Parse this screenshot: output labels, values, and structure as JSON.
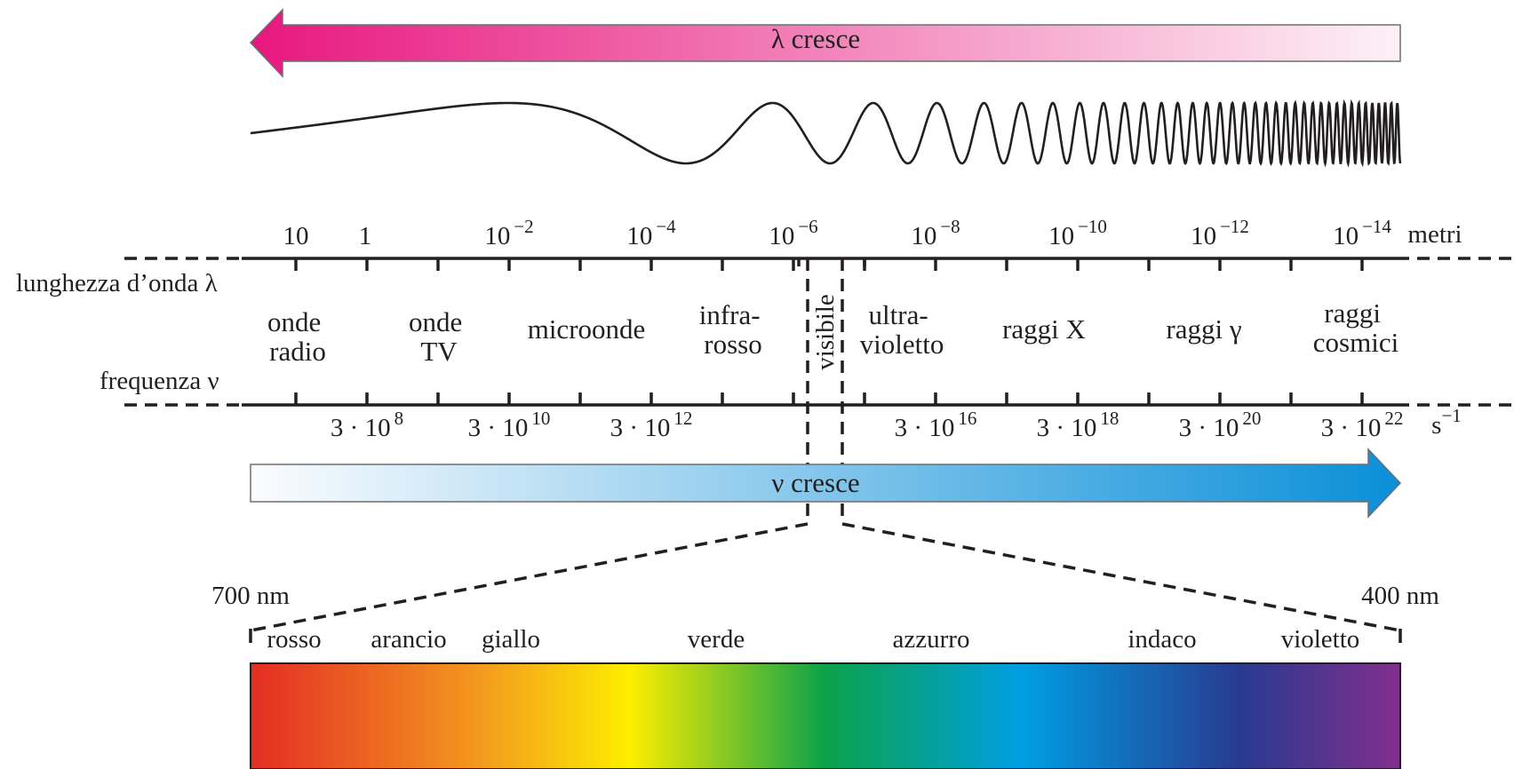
{
  "wavelength_arrow": {
    "label": "λ cresce",
    "color_start": "#e8177f",
    "color_end": "#fdf1f6"
  },
  "frequency_arrow": {
    "label": "ν cresce",
    "color_start": "#fbfcfe",
    "color_end": "#0a8fd8"
  },
  "wavelength_axis": {
    "name": "lunghezza d’onda λ",
    "unit": "metri",
    "ticks": [
      {
        "base": "10",
        "exp": ""
      },
      {
        "base": "1",
        "exp": ""
      },
      {
        "base": "10",
        "exp": "−2"
      },
      {
        "base": "10",
        "exp": "−4"
      },
      {
        "base": "10",
        "exp": "−6"
      },
      {
        "base": "10",
        "exp": "−8"
      },
      {
        "base": "10",
        "exp": "−10"
      },
      {
        "base": "10",
        "exp": "−12"
      },
      {
        "base": "10",
        "exp": "−14"
      }
    ]
  },
  "frequency_axis": {
    "name": "frequenza ν",
    "unit": "s",
    "unit_exp": "−1",
    "ticks": [
      {
        "base": "3 · 10",
        "exp": "8"
      },
      {
        "base": "3 · 10",
        "exp": "10"
      },
      {
        "base": "3 · 10",
        "exp": "12"
      },
      {
        "base": "3 · 10",
        "exp": "16"
      },
      {
        "base": "3 · 10",
        "exp": "18"
      },
      {
        "base": "3 · 10",
        "exp": "20"
      },
      {
        "base": "3 · 10",
        "exp": "22"
      }
    ]
  },
  "regions": [
    {
      "line1": "onde",
      "line2": "radio"
    },
    {
      "line1": "onde",
      "line2": "TV"
    },
    {
      "line1": "microonde",
      "line2": ""
    },
    {
      "line1": "infra-",
      "line2": "rosso"
    },
    {
      "line1": "visibile",
      "line2": ""
    },
    {
      "line1": "ultra-",
      "line2": "violetto"
    },
    {
      "line1": "raggi X",
      "line2": ""
    },
    {
      "line1": "raggi γ",
      "line2": ""
    },
    {
      "line1": "raggi",
      "line2": "cosmici"
    }
  ],
  "visible_spectrum": {
    "left_label": "700 nm",
    "right_label": "400 nm",
    "colors": [
      {
        "name": "rosso",
        "hex": "#e42d24"
      },
      {
        "name": "arancio",
        "hex": "#f39a1e"
      },
      {
        "name": "giallo",
        "hex": "#fdee00"
      },
      {
        "name": "verde",
        "hex": "#0ba24a"
      },
      {
        "name": "azzurro",
        "hex": "#009fe3"
      },
      {
        "name": "indaco",
        "hex": "#283a90"
      },
      {
        "name": "violetto",
        "hex": "#812f8c"
      }
    ]
  }
}
